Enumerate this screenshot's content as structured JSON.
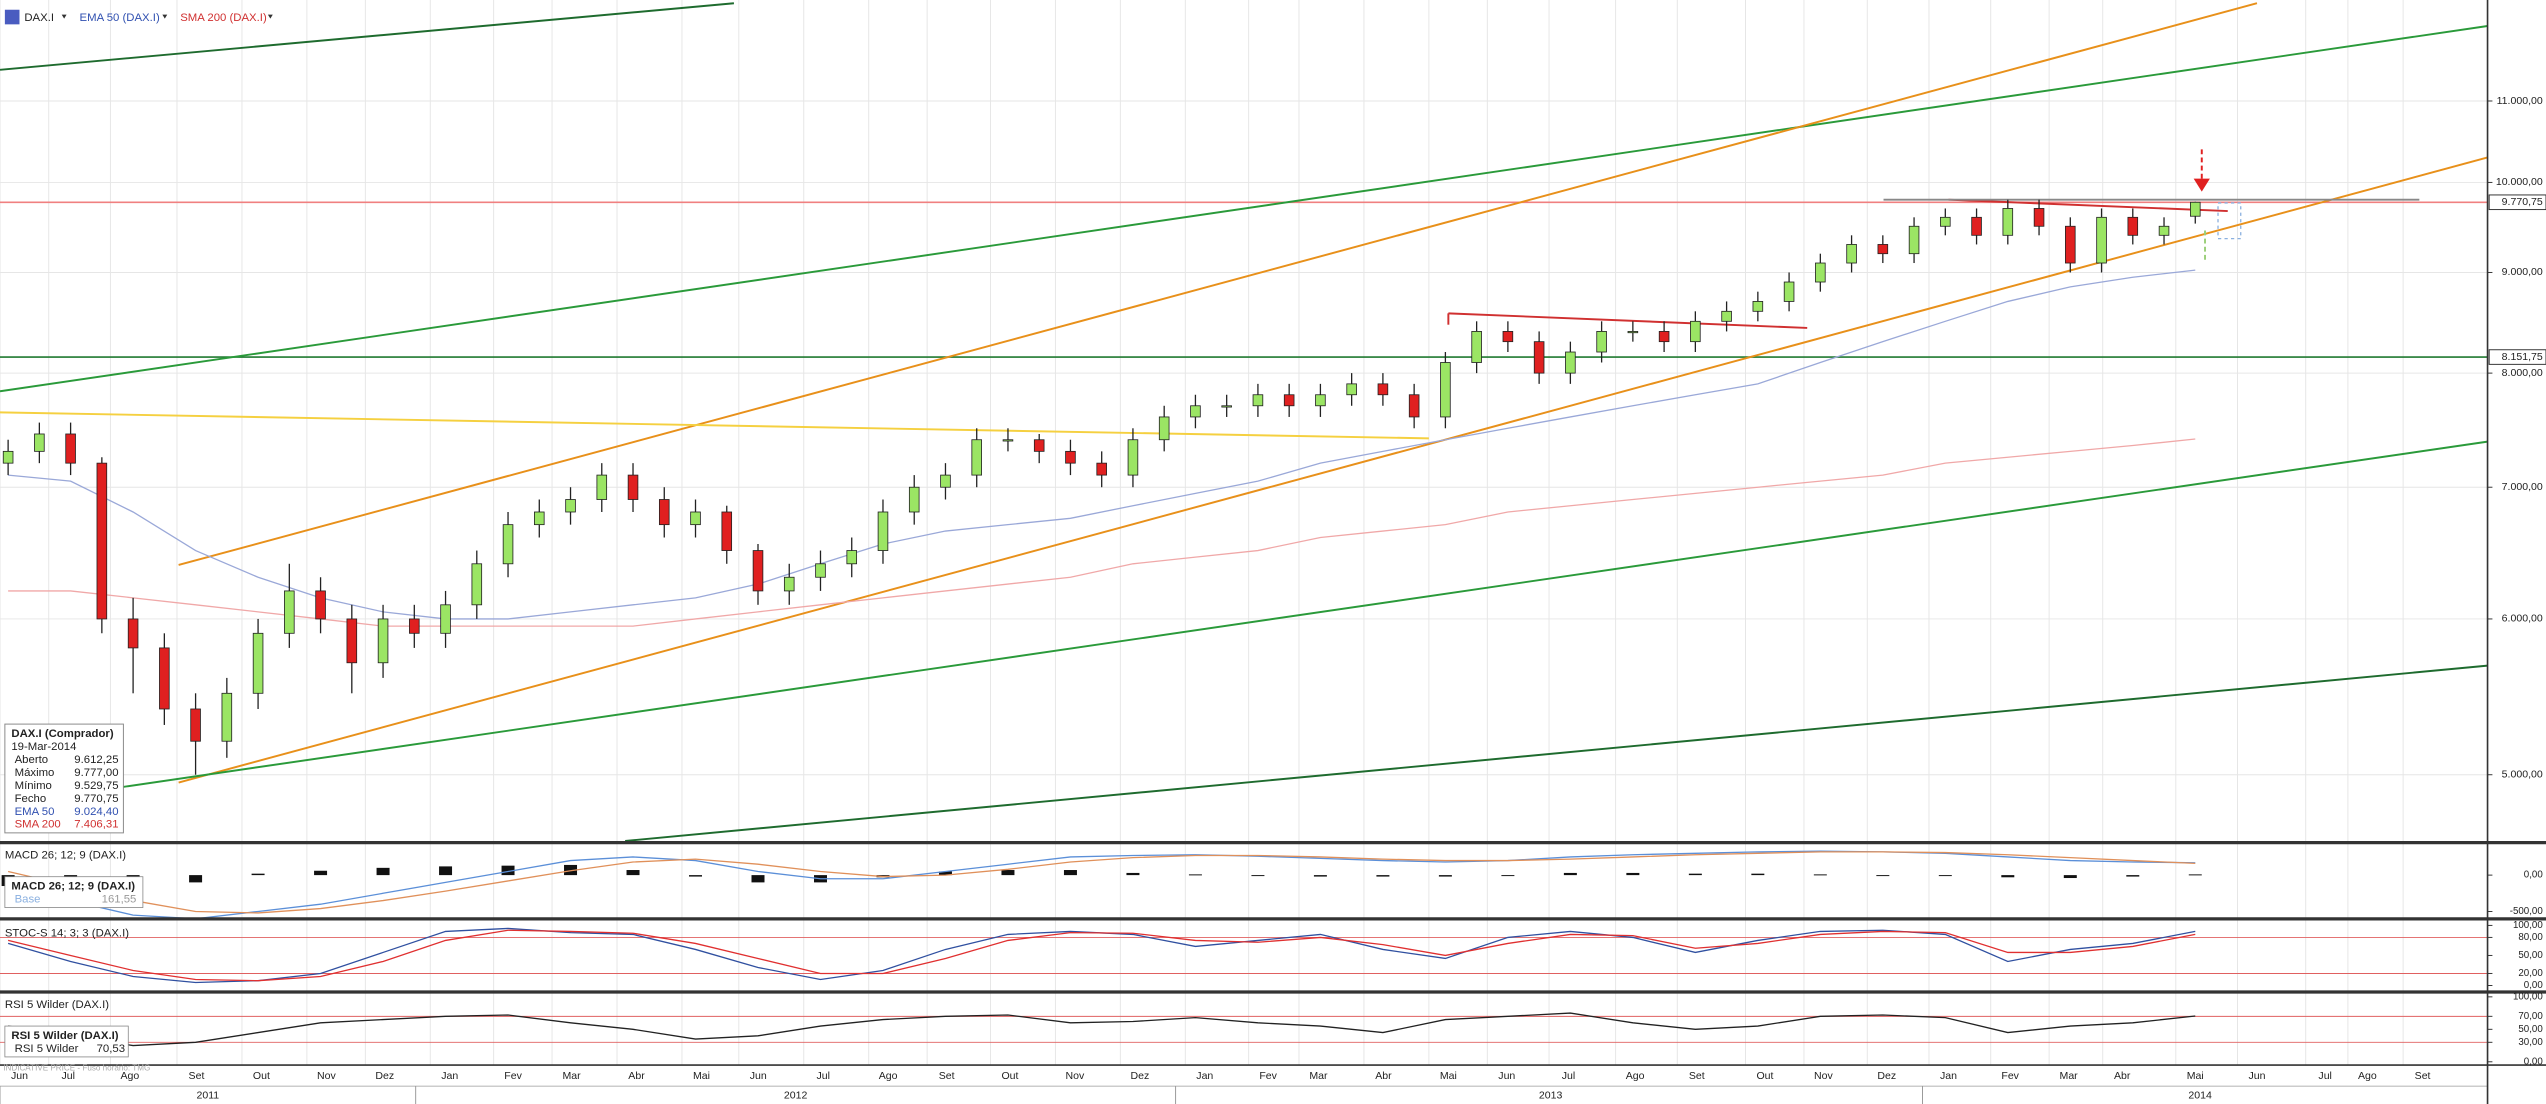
{
  "ui": {
    "symbol": "DAX.I",
    "ema_label": "EMA 50 (DAX.I)",
    "sma_label": "SMA 200 (DAX.I)",
    "info_title": "DAX.I (Comprador)",
    "info_date": "19-Mar-2014",
    "info_rows": [
      [
        "Aberto",
        "9.612,25"
      ],
      [
        "Máximo",
        "9.777,00"
      ],
      [
        "Mínimo",
        "9.529,75"
      ],
      [
        "Fecho",
        "9.770,75"
      ],
      [
        "EMA 50",
        "9.024,40"
      ],
      [
        "SMA 200",
        "7.406,31"
      ]
    ],
    "macd_box": "MACD 26; 12; 9 (DAX.I)",
    "macd_box_row": [
      "Base",
      "161,55"
    ],
    "rsi_box": "RSI 5 Wilder (DAX.I)",
    "rsi_box_row": [
      "RSI 5 Wilder",
      "70,53"
    ],
    "footer": "INDICATIVE PRICE - Fuso horário: TMG",
    "months": [
      "Jun",
      "Jul",
      "Ago",
      "Set",
      "Out",
      "Nov",
      "Dez",
      "Jan",
      "Fev",
      "Mar",
      "Abr",
      "Mai",
      "Jun",
      "Jul",
      "Ago",
      "Set",
      "Out",
      "Nov",
      "Dez",
      "Jan",
      "Fev",
      "Mar",
      "Abr",
      "Mai",
      "Jun",
      "Jul",
      "Ago",
      "Set",
      "Out",
      "Nov",
      "Dez",
      "Jan",
      "Fev",
      "Mar",
      "Abr",
      "Mai",
      "Jun",
      "Jul",
      "Ago",
      "Set"
    ],
    "years": [
      "2011",
      "2012",
      "2013",
      "2014"
    ]
  },
  "chart_data": [
    {
      "type": "candlestick",
      "log_scale": true,
      "grid": true,
      "up_color": "#9be564",
      "down_color": "#e02020",
      "open": [
        7200,
        7300,
        7450,
        7200,
        6000,
        5800,
        5400,
        5200,
        5500,
        5900,
        6200,
        6000,
        5700,
        6000,
        5900,
        6100,
        6400,
        6700,
        6800,
        6900,
        7100,
        6900,
        6700,
        6800,
        6500,
        6200,
        6300,
        6400,
        6500,
        6800,
        7000,
        7100,
        7400,
        7400,
        7300,
        7200,
        7100,
        7400,
        7600,
        7700,
        7700,
        7800,
        7700,
        7800,
        7900,
        7800,
        7600,
        8100,
        8400,
        8300,
        8000,
        8200,
        8400,
        8400,
        8300,
        8500,
        8600,
        8700,
        8900,
        9100,
        9300,
        9200,
        9500,
        9600,
        9400,
        9700,
        9500,
        9100,
        9600,
        9400,
        9612.25
      ],
      "high": [
        7400,
        7550,
        7550,
        7250,
        6150,
        5900,
        5500,
        5600,
        6000,
        6400,
        6300,
        6100,
        6100,
        6100,
        6200,
        6500,
        6800,
        6900,
        7000,
        7200,
        7200,
        7000,
        6900,
        6850,
        6550,
        6400,
        6500,
        6600,
        6900,
        7100,
        7200,
        7500,
        7500,
        7450,
        7400,
        7300,
        7500,
        7700,
        7800,
        7800,
        7900,
        7900,
        7900,
        8000,
        8000,
        7900,
        8200,
        8500,
        8500,
        8400,
        8300,
        8500,
        8500,
        8500,
        8600,
        8700,
        8800,
        9000,
        9200,
        9400,
        9400,
        9600,
        9700,
        9700,
        9800,
        9800,
        9600,
        9700,
        9700,
        9600,
        9777
      ],
      "low": [
        7100,
        7200,
        7100,
        5900,
        5500,
        5300,
        5000,
        5100,
        5400,
        5800,
        5900,
        5500,
        5600,
        5800,
        5800,
        6000,
        6300,
        6600,
        6700,
        6800,
        6800,
        6600,
        6600,
        6400,
        6100,
        6100,
        6200,
        6300,
        6400,
        6700,
        6900,
        7000,
        7300,
        7200,
        7100,
        7000,
        7000,
        7300,
        7500,
        7600,
        7600,
        7600,
        7600,
        7700,
        7700,
        7500,
        7500,
        8000,
        8200,
        7900,
        7900,
        8100,
        8300,
        8200,
        8200,
        8400,
        8500,
        8600,
        8800,
        9000,
        9100,
        9100,
        9400,
        9300,
        9300,
        9400,
        9000,
        9000,
        9300,
        9300,
        9529.75
      ],
      "close": [
        7300,
        7450,
        7200,
        6000,
        5800,
        5400,
        5200,
        5500,
        5900,
        6200,
        6000,
        5700,
        6000,
        5900,
        6100,
        6400,
        6700,
        6800,
        6900,
        7100,
        6900,
        6700,
        6800,
        6500,
        6200,
        6300,
        6400,
        6500,
        6800,
        7000,
        7100,
        7400,
        7400,
        7300,
        7200,
        7100,
        7400,
        7600,
        7700,
        7700,
        7800,
        7700,
        7800,
        7900,
        7800,
        7600,
        8100,
        8400,
        8300,
        8000,
        8200,
        8400,
        8400,
        8300,
        8500,
        8600,
        8700,
        8900,
        9100,
        9300,
        9200,
        9500,
        9600,
        9400,
        9700,
        9500,
        9100,
        9600,
        9400,
        9500,
        9770.75
      ],
      "series": [
        {
          "name": "EMA 50",
          "color": "#9aa8d8",
          "values": [
            7100,
            7050,
            6800,
            6500,
            6300,
            6150,
            6050,
            6000,
            6000,
            6050,
            6100,
            6150,
            6250,
            6400,
            6550,
            6650,
            6700,
            6750,
            6850,
            6950,
            7050,
            7200,
            7300,
            7400,
            7500,
            7600,
            7700,
            7800,
            7900,
            8100,
            8300,
            8500,
            8700,
            8850,
            8950,
            9024.4
          ]
        },
        {
          "name": "SMA 200",
          "color": "#f0a8a8",
          "values": [
            6200,
            6200,
            6150,
            6100,
            6050,
            6000,
            5950,
            5950,
            5950,
            5950,
            5950,
            6000,
            6050,
            6100,
            6150,
            6200,
            6250,
            6300,
            6400,
            6450,
            6500,
            6600,
            6650,
            6700,
            6800,
            6850,
            6900,
            6950,
            7000,
            7050,
            7100,
            7200,
            7250,
            7300,
            7350,
            7406.31
          ]
        }
      ],
      "price_markers": [
        {
          "value": 9770.75,
          "label": "9.770,75",
          "color": "#f08080"
        },
        {
          "value": 8151.75,
          "label": "8.151,75",
          "color": "#207a30"
        }
      ],
      "ylim": [
        4627,
        12380
      ],
      "yticks": [
        {
          "value": 11000,
          "label": "11.000,00"
        },
        {
          "value": 10000,
          "label": "10.000,00"
        },
        {
          "value": 9000,
          "label": "9.000,00"
        },
        {
          "value": 8000,
          "label": "8.000,00"
        },
        {
          "value": 7000,
          "label": "7.000,00"
        },
        {
          "value": 6000,
          "label": "6.000,00"
        },
        {
          "value": 5000,
          "label": "5.000,00"
        }
      ]
    },
    {
      "type": "line",
      "title": "MACD 26; 12; 9 (DAX.I)",
      "series": [
        {
          "name": "MACD",
          "color": "#5b8fd8",
          "values": [
            -100,
            -350,
            -550,
            -600,
            -500,
            -400,
            -250,
            -100,
            50,
            200,
            250,
            200,
            50,
            -50,
            -50,
            50,
            150,
            250,
            270,
            280,
            260,
            230,
            200,
            180,
            200,
            250,
            280,
            300,
            320,
            330,
            320,
            300,
            250,
            200,
            180,
            170
          ]
        },
        {
          "name": "Base",
          "color": "#e0905a",
          "values": [
            50,
            -150,
            -350,
            -500,
            -520,
            -460,
            -350,
            -220,
            -80,
            60,
            180,
            220,
            150,
            50,
            -20,
            0,
            80,
            180,
            240,
            270,
            270,
            250,
            220,
            200,
            200,
            220,
            250,
            280,
            300,
            320,
            320,
            310,
            280,
            240,
            200,
            161.55
          ]
        }
      ],
      "histogram": [
        -150,
        -200,
        -200,
        -100,
        20,
        60,
        100,
        120,
        130,
        140,
        70,
        -20,
        -100,
        -100,
        -30,
        50,
        70,
        70,
        30,
        10,
        -10,
        -20,
        -20,
        -20,
        0,
        30,
        30,
        20,
        20,
        10,
        0,
        -10,
        -30,
        -40,
        -20,
        10
      ],
      "ylim": [
        -580,
        380
      ],
      "yticks": [
        {
          "value": 0,
          "label": "0,00"
        },
        {
          "value": -500,
          "label": "-500,00"
        }
      ]
    },
    {
      "type": "line",
      "title": "STOC-S 14; 3; 3 (DAX.I)",
      "series": [
        {
          "name": "%K",
          "color": "#3050a0",
          "values": [
            70,
            40,
            15,
            5,
            8,
            20,
            55,
            90,
            95,
            88,
            85,
            60,
            30,
            10,
            25,
            60,
            85,
            90,
            85,
            65,
            75,
            85,
            60,
            45,
            80,
            90,
            80,
            55,
            75,
            90,
            92,
            85,
            40,
            60,
            70,
            90
          ]
        },
        {
          "name": "%D",
          "color": "#e03030",
          "values": [
            75,
            50,
            25,
            10,
            8,
            15,
            40,
            75,
            92,
            90,
            87,
            70,
            45,
            20,
            20,
            45,
            75,
            88,
            87,
            75,
            72,
            80,
            68,
            50,
            70,
            85,
            83,
            62,
            70,
            85,
            90,
            88,
            55,
            55,
            65,
            85
          ]
        }
      ],
      "levels": [
        80,
        20
      ],
      "ylim": [
        0,
        100
      ],
      "yticks": [
        {
          "value": 100,
          "label": "100,00"
        },
        {
          "value": 80,
          "label": "80,00"
        },
        {
          "value": 50,
          "label": "50,00"
        },
        {
          "value": 20,
          "label": "20,00"
        },
        {
          "value": 0,
          "label": "0,00"
        }
      ]
    },
    {
      "type": "line",
      "title": "RSI 5 Wilder (DAX.I)",
      "series": [
        {
          "name": "RSI 5 Wilder",
          "color": "#222222",
          "values": [
            55,
            40,
            25,
            30,
            45,
            60,
            65,
            70,
            72,
            60,
            50,
            35,
            40,
            55,
            65,
            70,
            72,
            60,
            62,
            68,
            60,
            55,
            45,
            65,
            70,
            75,
            60,
            50,
            55,
            70,
            72,
            68,
            45,
            55,
            60,
            70.53
          ]
        }
      ],
      "levels": [
        70,
        30
      ],
      "ylim": [
        0,
        100
      ],
      "yticks": [
        {
          "value": 100,
          "label": "100,00"
        },
        {
          "value": 70,
          "label": "70,00"
        },
        {
          "value": 50,
          "label": "50,00"
        },
        {
          "value": 30,
          "label": "30,00"
        },
        {
          "value": 0,
          "label": "0,00"
        }
      ]
    }
  ]
}
